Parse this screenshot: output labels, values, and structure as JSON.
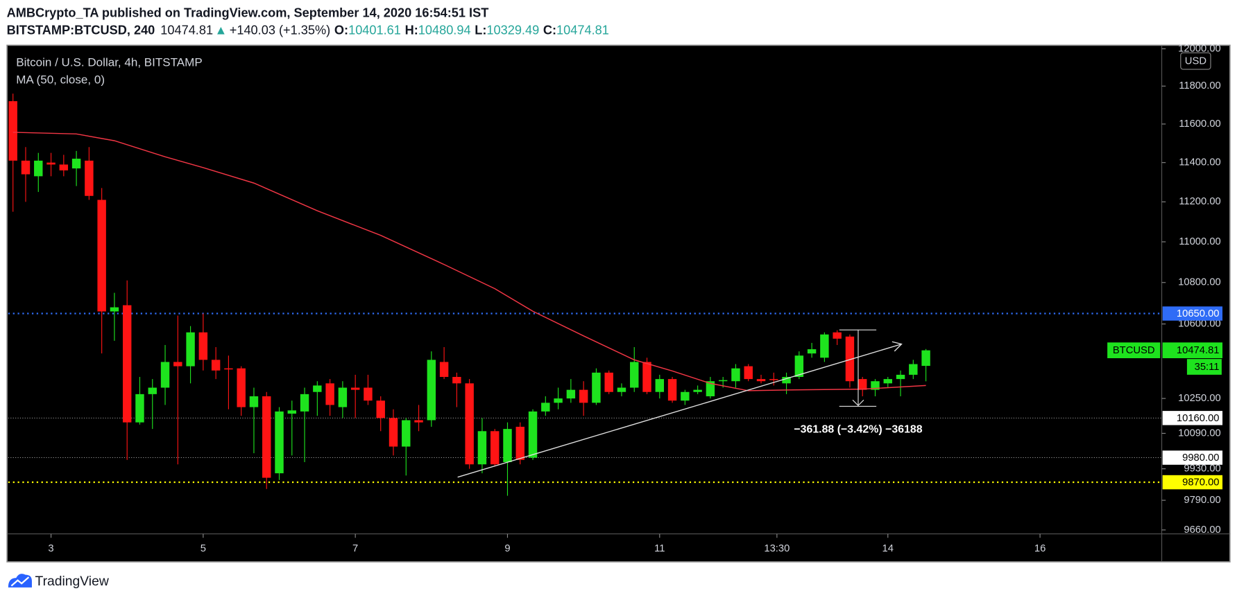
{
  "header": {
    "publisher_line": "AMBCrypto_TA published on TradingView.com, September 14, 2020 16:54:51 IST",
    "symbol": "BITSTAMP:BTCUSD, 240",
    "price": "10474.81",
    "arrow": "▲",
    "change": "+140.03 (+1.35%)",
    "ohlc": [
      {
        "label": "O:",
        "value": "10401.61"
      },
      {
        "label": "H:",
        "value": "10480.94"
      },
      {
        "label": "L:",
        "value": "10329.49"
      },
      {
        "label": "C:",
        "value": "10474.81"
      }
    ]
  },
  "footer": {
    "brand": "TradingView"
  },
  "chart_data": {
    "type": "candlestick",
    "title": "Bitcoin / U.S. Dollar, 4h, BITSTAMP",
    "currency": "USD",
    "log_scale": true,
    "grid": false,
    "up_color": "#1ee31e",
    "down_color": "#ff1414",
    "xlim": [
      -0.375,
      90.6
    ],
    "ylim": [
      9643,
      12017
    ],
    "xticks": [
      3,
      {
        "value": 15,
        "label": "5"
      },
      {
        "value": 27,
        "label": "7"
      },
      {
        "value": 39,
        "label": "9"
      },
      {
        "value": 51,
        "label": "11"
      },
      {
        "value": 60.25,
        "label": "13:30"
      },
      {
        "value": 69,
        "label": "14"
      },
      {
        "value": 81,
        "label": "16"
      }
    ],
    "yticks": [
      {
        "value": 12000,
        "label": "12000.00"
      },
      {
        "value": 11800,
        "label": "11800.00"
      },
      {
        "value": 11600,
        "label": "11600.00"
      },
      {
        "value": 11400,
        "label": "11400.00"
      },
      {
        "value": 11200,
        "label": "11200.00"
      },
      {
        "value": 11000,
        "label": "11000.00"
      },
      {
        "value": 10800,
        "label": "10800.00"
      },
      {
        "value": 10600,
        "label": "10600.00"
      },
      {
        "value": 10250,
        "label": "10250.00"
      },
      {
        "value": 10090,
        "label": "10090.00"
      },
      {
        "value": 9930,
        "label": "9930.00"
      },
      {
        "value": 9790,
        "label": "9790.00"
      },
      {
        "value": 9660,
        "label": "9660.00"
      }
    ],
    "x": [
      0,
      1,
      2,
      3,
      4,
      5,
      6,
      7,
      8,
      9,
      10,
      11,
      12,
      13,
      14,
      15,
      16,
      17,
      18,
      19,
      20,
      21,
      22,
      23,
      24,
      25,
      26,
      27,
      28,
      29,
      30,
      31,
      32,
      33,
      34,
      35,
      36,
      37,
      38,
      39,
      40,
      41,
      42,
      43,
      44,
      45,
      46,
      47,
      48,
      49,
      50,
      51,
      52,
      53,
      54,
      55,
      56,
      57,
      58,
      59,
      60,
      61,
      62,
      63,
      64,
      65,
      66,
      67,
      68,
      69,
      70,
      71,
      72
    ],
    "open": [
      11720,
      11410,
      11330,
      11400,
      11390,
      11370,
      11410,
      11210,
      10660,
      10690,
      10140,
      10270,
      10300,
      10420,
      10400,
      10560,
      10430,
      10390,
      10390,
      10210,
      10260,
      9910,
      10180,
      10190,
      10280,
      10320,
      10210,
      10300,
      10300,
      10240,
      10160,
      10030,
      10150,
      10150,
      10420,
      10350,
      10320,
      9950,
      10100,
      9960,
      10120,
      9980,
      10190,
      10230,
      10250,
      10290,
      10230,
      10370,
      10280,
      10300,
      10420,
      10280,
      10340,
      10240,
      10280,
      10260,
      10330,
      10330,
      10400,
      10340,
      10340,
      10320,
      10350,
      10460,
      10440,
      10560,
      10540,
      10340,
      10290,
      10320,
      10340,
      10360,
      10401.61
    ],
    "high": [
      11760,
      11480,
      11450,
      11450,
      11440,
      11460,
      11480,
      11270,
      10750,
      10810,
      10350,
      10340,
      10500,
      10640,
      10590,
      10650,
      10490,
      10450,
      10400,
      10300,
      10280,
      10210,
      10240,
      10300,
      10330,
      10340,
      10330,
      10360,
      10360,
      10260,
      10200,
      10160,
      10220,
      10470,
      10490,
      10370,
      10340,
      10160,
      10110,
      10140,
      10140,
      10200,
      10260,
      10300,
      10340,
      10330,
      10390,
      10380,
      10320,
      10490,
      10440,
      10360,
      10350,
      10290,
      10310,
      10350,
      10350,
      10410,
      10410,
      10360,
      10370,
      10370,
      10470,
      10510,
      10560,
      10570,
      10550,
      10350,
      10340,
      10350,
      10380,
      10430,
      10480.94
    ],
    "low": [
      11150,
      11200,
      11250,
      11330,
      11330,
      11280,
      11210,
      10460,
      10520,
      9970,
      10130,
      10110,
      10220,
      9950,
      10320,
      10380,
      10340,
      10200,
      10170,
      10000,
      9840,
      9880,
      9990,
      9960,
      10170,
      10170,
      10160,
      10160,
      10220,
      10100,
      9990,
      9900,
      10100,
      10120,
      10340,
      10210,
      9930,
      9910,
      9940,
      9810,
      9950,
      9970,
      10170,
      10200,
      10230,
      10170,
      10220,
      10270,
      10260,
      10280,
      10270,
      10250,
      10230,
      10220,
      10270,
      10250,
      10300,
      10300,
      10330,
      10320,
      10310,
      10270,
      10340,
      10440,
      10420,
      10500,
      10300,
      10260,
      10260,
      10300,
      10260,
      10340,
      10329.49
    ],
    "close": [
      11410,
      11340,
      11410,
      11390,
      11360,
      11420,
      11230,
      10660,
      10680,
      10140,
      10270,
      10300,
      10420,
      10400,
      10560,
      10430,
      10380,
      10385,
      10210,
      10260,
      9890,
      10190,
      10195,
      10270,
      10310,
      10220,
      10300,
      10290,
      10240,
      10160,
      10030,
      10150,
      10140,
      10430,
      10350,
      10320,
      9950,
      10100,
      9950,
      10110,
      9970,
      10190,
      10230,
      10250,
      10290,
      10230,
      10370,
      10280,
      10300,
      10420,
      10280,
      10340,
      10240,
      10280,
      10290,
      10330,
      10335,
      10390,
      10340,
      10330,
      10335,
      10350,
      10450,
      10480,
      10550,
      10530,
      10330,
      10290,
      10330,
      10340,
      10360,
      10410,
      10474.81
    ],
    "series": [
      {
        "name": "MA (50, close, 0)",
        "color": "#f23645",
        "x": [
          0,
          5,
          8,
          12,
          15,
          19,
          24,
          29,
          34,
          38,
          41,
          45,
          49,
          52,
          55,
          58,
          61,
          67,
          72
        ],
        "values": [
          11557,
          11548,
          11513,
          11430,
          11374,
          11295,
          11155,
          11032,
          10888,
          10770,
          10661,
          10543,
          10430,
          10378,
          10320,
          10286,
          10289,
          10293,
          10310
        ]
      }
    ],
    "price_lines": [
      {
        "value": 10650,
        "label": "10650.00",
        "color": "#2f6cf6"
      },
      {
        "value": 10160,
        "label": "10160.00",
        "color": "#ffffff"
      },
      {
        "value": 9980,
        "label": "9980.00",
        "color": "#ffffff"
      },
      {
        "value": 9870,
        "label": "9870.00",
        "color": "#ffff00"
      }
    ],
    "last_price": {
      "name": "BTCUSD",
      "value": 10474.81,
      "countdown": "35:11",
      "color": "#1ee31e"
    },
    "annotations": [
      {
        "text": "−361.88 (−3.42%) −36188"
      }
    ]
  }
}
